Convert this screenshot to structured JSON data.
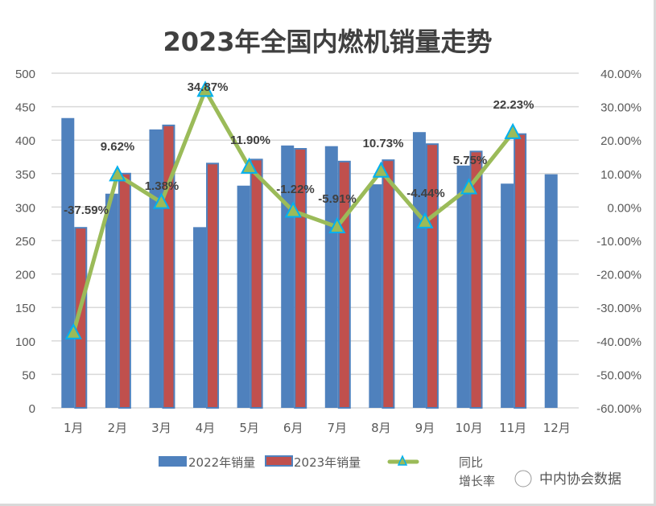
{
  "chart_data": {
    "type": "bar",
    "title": "2023年全国内燃机销量走势",
    "categories": [
      "1月",
      "2月",
      "3月",
      "4月",
      "5月",
      "6月",
      "7月",
      "8月",
      "9月",
      "10月",
      "11月",
      "12月"
    ],
    "series": [
      {
        "name": "2022年销量",
        "type": "bar",
        "axis": "left",
        "color": "#4f81bd",
        "values": [
          433,
          320,
          416,
          270,
          332,
          392,
          391,
          334,
          412,
          362,
          335,
          349
        ]
      },
      {
        "name": "2023年销量",
        "type": "bar",
        "axis": "left",
        "color": "#c0504d",
        "values": [
          269,
          350,
          422,
          365,
          371,
          387,
          368,
          370,
          394,
          383,
          409,
          null
        ]
      },
      {
        "name": "同比增长率",
        "type": "line",
        "axis": "right",
        "color": "#9bbb59",
        "marker": "triangle",
        "marker_border": "#00b0f0",
        "values": [
          -37.59,
          9.62,
          1.38,
          34.87,
          11.9,
          -1.22,
          -5.91,
          10.73,
          -4.44,
          5.75,
          22.23,
          null
        ],
        "labels": [
          "-37.59%",
          "9.62%",
          "1.38%",
          "34.87%",
          "11.90%",
          "-1.22%",
          "-5.91%",
          "10.73%",
          "-4.44%",
          "5.75%",
          "22.23%",
          null
        ]
      }
    ],
    "ylim": [
      0,
      500
    ],
    "yticks": [
      "0",
      "50",
      "100",
      "150",
      "200",
      "250",
      "300",
      "350",
      "400",
      "450",
      "500"
    ],
    "y2lim": [
      -60,
      40
    ],
    "y2ticks": [
      "-60.00%",
      "-50.00%",
      "-40.00%",
      "-30.00%",
      "-20.00%",
      "-10.00%",
      "0.00%",
      "10.00%",
      "20.00%",
      "30.00%",
      "40.00%"
    ],
    "grid": true,
    "legend_placement": "bottom"
  },
  "legend": {
    "line_label_1": "同比",
    "line_label_2": "增长率"
  },
  "watermark": "中内协会数据"
}
